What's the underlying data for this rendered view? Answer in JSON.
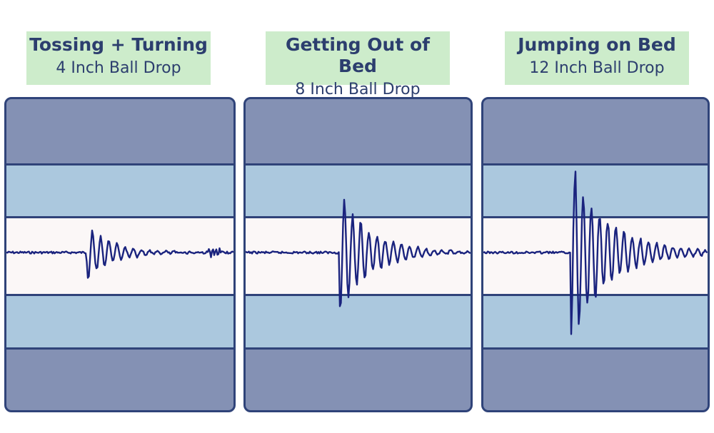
{
  "panels": [
    {
      "title": "Tossing + Turning",
      "subtitle": "4 Inch Ball Drop",
      "intensity": 1
    },
    {
      "title": "Getting Out of Bed",
      "subtitle": "8 Inch Ball Drop",
      "intensity": 2
    },
    {
      "title": "Jumping on Bed",
      "subtitle": "12 Inch Ball Drop",
      "intensity": 3
    }
  ],
  "colors": {
    "label_bg": "#cdeccb",
    "title_text": "#2c3e6e",
    "outer_band": "#8491b4",
    "inner_band": "#abc8de",
    "center_band": "#fbf7f7",
    "wave": "#1a237e"
  }
}
